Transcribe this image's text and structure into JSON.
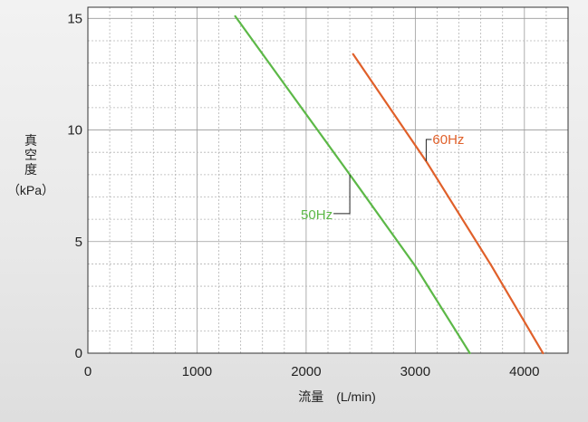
{
  "chart_data": {
    "type": "line",
    "xlabel": "流量　(L/min)",
    "ylabel_chars": [
      "真",
      "空",
      "度"
    ],
    "ylabel_unit": "（kPa）",
    "xlim": [
      0,
      4400
    ],
    "ylim": [
      0,
      15.5
    ],
    "xticks": [
      0,
      1000,
      2000,
      3000,
      4000
    ],
    "yticks": [
      0,
      5,
      10,
      15
    ],
    "x_minor_step": 200,
    "y_minor_step": 1,
    "grid": true,
    "series": [
      {
        "name": "50Hz",
        "color": "#5cb847",
        "points": [
          [
            1350,
            15.1
          ],
          [
            2400,
            8.0
          ],
          [
            3000,
            3.9
          ],
          [
            3500,
            0
          ]
        ]
      },
      {
        "name": "60Hz",
        "color": "#e0602a",
        "points": [
          [
            2430,
            13.4
          ],
          [
            3100,
            8.6
          ],
          [
            3700,
            3.9
          ],
          [
            4170,
            0
          ]
        ]
      }
    ]
  }
}
